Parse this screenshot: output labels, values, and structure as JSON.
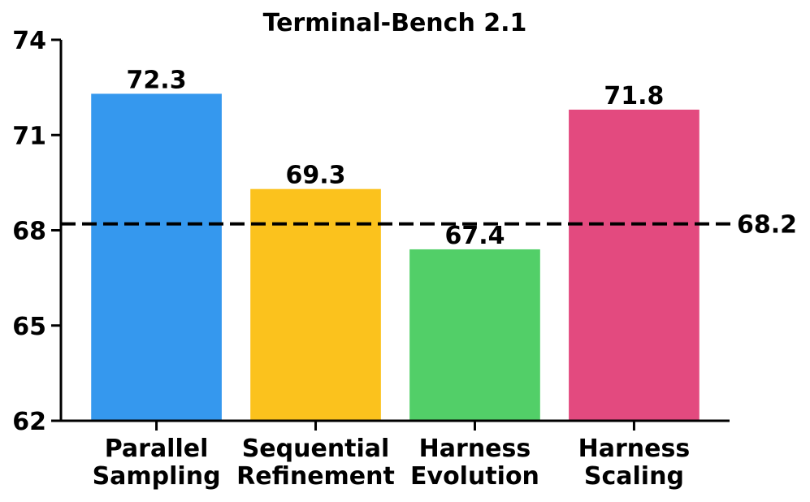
{
  "chart_data": {
    "type": "bar",
    "title": "Terminal-Bench 2.1",
    "categories": [
      "Parallel\nSampling",
      "Sequential\nRefinement",
      "Harness\nEvolution",
      "Harness\nScaling"
    ],
    "values": [
      72.3,
      69.3,
      67.4,
      71.8
    ],
    "colors": [
      "#3598ee",
      "#fbc21d",
      "#52cf68",
      "#e34a7f"
    ],
    "ylim": [
      62,
      74
    ],
    "yticks": [
      62,
      65,
      68,
      71,
      74
    ],
    "reference_line": 68.2
  }
}
